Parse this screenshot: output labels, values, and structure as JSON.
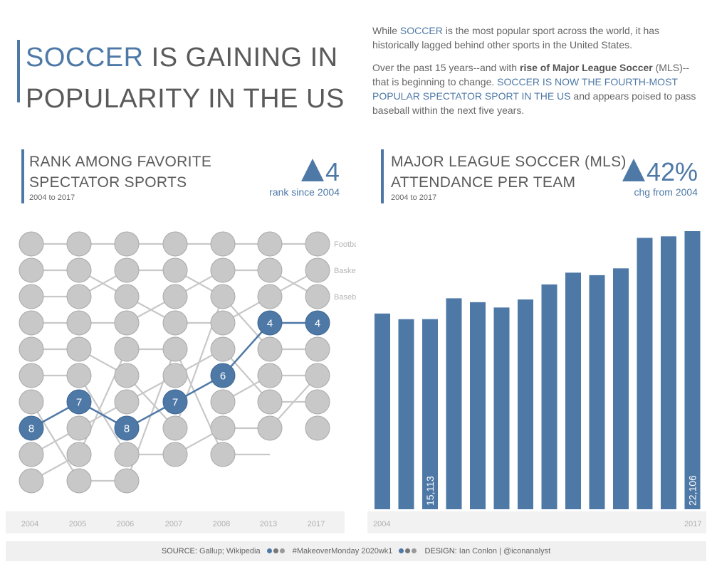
{
  "header": {
    "title_accent": "SOCCER",
    "title_line1_rest": " IS GAINING IN",
    "title_line2": "POPULARITY IN THE US"
  },
  "intro": {
    "p1_a": "While ",
    "p1_accent": "SOCCER",
    "p1_b": " is the most popular sport across the world, it has historically lagged behind other sports in the United States.",
    "p2_a": "Over the past 15 years--and with ",
    "p2_bold": "rise of Major League Soccer",
    "p2_b": " (MLS)--that is beginning to change. ",
    "p2_accent": "SOCCER IS NOW THE FOURTH-MOST POPULAR SPECTATOR SPORT IN THE US",
    "p2_c": " and appears poised to pass baseball within the next five years."
  },
  "rank_section": {
    "title_line1": "RANK AMONG FAVORITE",
    "title_line2": "SPECTATOR SPORTS",
    "subtitle": "2004 to 2017",
    "kpi_value": "4",
    "kpi_label": "rank since 2004"
  },
  "mls_section": {
    "title_line1": "MAJOR LEAGUE SOCCER (MLS)",
    "title_line2": "ATTENDANCE PER TEAM",
    "subtitle": "2004 to 2017",
    "kpi_value": "42%",
    "kpi_label": "chg from 2004"
  },
  "colors": {
    "accent": "#4e79a7",
    "muted": "#c8c8c8",
    "text": "#5a5a5a"
  },
  "chart_data": [
    {
      "type": "line",
      "x": [
        "2004",
        "2005",
        "2006",
        "2007",
        "2008",
        "2013",
        "2017"
      ],
      "ylim": [
        1,
        10
      ],
      "y_reversed": true,
      "highlight_series": {
        "values": [
          8,
          7,
          8,
          7,
          6,
          4,
          4
        ],
        "labels": [
          "8",
          "7",
          "8",
          "7",
          "6",
          "4",
          "4"
        ]
      },
      "series_labels": [
        {
          "text": "Football",
          "rank": 1
        },
        {
          "text": "Basketball",
          "rank": 2
        },
        {
          "text": "Baseball",
          "rank": 3
        }
      ],
      "ranks_per_year": [
        10,
        10,
        10,
        9,
        9,
        8,
        8
      ],
      "background_links": [
        [
          [
            1,
            1
          ],
          [
            2,
            2
          ],
          [
            3,
            3
          ],
          [
            4,
            4
          ],
          [
            5,
            5
          ],
          [
            6,
            6
          ],
          [
            7,
            10
          ],
          [
            9,
            8
          ],
          [
            10,
            9
          ]
        ],
        [
          [
            1,
            1
          ],
          [
            2,
            3
          ],
          [
            3,
            2
          ],
          [
            4,
            4
          ],
          [
            5,
            6
          ],
          [
            6,
            9
          ],
          [
            8,
            7
          ],
          [
            9,
            5
          ],
          [
            10,
            10
          ]
        ],
        [
          [
            1,
            1
          ],
          [
            2,
            2
          ],
          [
            3,
            4
          ],
          [
            4,
            3
          ],
          [
            5,
            5
          ],
          [
            6,
            8
          ],
          [
            7,
            6
          ],
          [
            9,
            9
          ],
          [
            10,
            5
          ]
        ],
        [
          [
            1,
            1
          ],
          [
            2,
            3
          ],
          [
            3,
            2
          ],
          [
            4,
            4
          ],
          [
            5,
            9
          ],
          [
            6,
            5
          ],
          [
            8,
            3
          ],
          [
            9,
            8
          ]
        ],
        [
          [
            1,
            1
          ],
          [
            2,
            2
          ],
          [
            3,
            5
          ],
          [
            4,
            3
          ],
          [
            5,
            7
          ],
          [
            7,
            6
          ],
          [
            8,
            8
          ],
          [
            9,
            9
          ]
        ],
        [
          [
            1,
            1
          ],
          [
            2,
            3
          ],
          [
            3,
            2
          ],
          [
            5,
            5
          ],
          [
            6,
            6
          ],
          [
            7,
            7
          ],
          [
            8,
            6
          ]
        ]
      ]
    },
    {
      "type": "bar",
      "categories": [
        "2004",
        "2005",
        "2006",
        "2007",
        "2008",
        "2009",
        "2010",
        "2011",
        "2012",
        "2013",
        "2014",
        "2015",
        "2016",
        "2017"
      ],
      "values": [
        15559,
        15108,
        15113,
        16770,
        16460,
        16037,
        16675,
        17872,
        18807,
        18608,
        19148,
        21574,
        21692,
        22106
      ],
      "ylim": [
        0,
        22106
      ],
      "x_tick_labels": [
        "2004",
        "2017"
      ],
      "data_labels": {
        "2006": "15,113",
        "2017": "22,106"
      }
    }
  ],
  "footer": {
    "source_label": "SOURCE:",
    "source_value": " Gallup; Wikipedia",
    "hashtag": "#MakeoverMonday 2020wk1",
    "design_label": "DESIGN:",
    "design_value": " Ian Conlon | @iconanalyst"
  }
}
